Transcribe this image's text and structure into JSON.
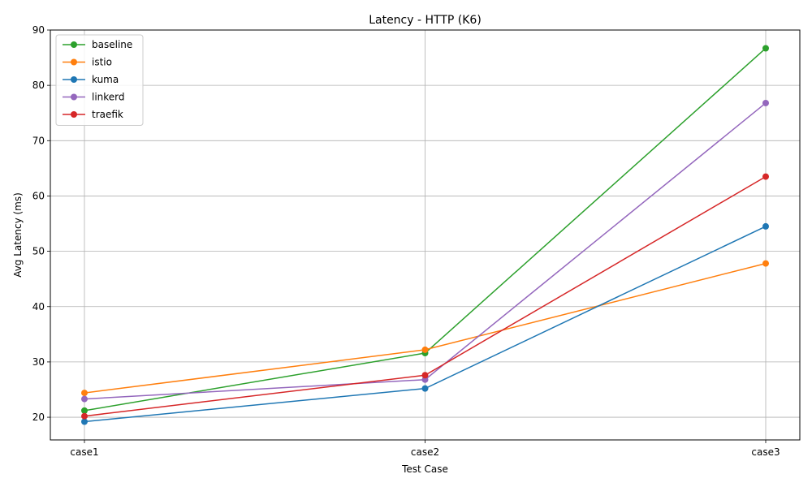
{
  "chart_data": {
    "type": "line",
    "title": "Latency - HTTP (K6)",
    "xlabel": "Test Case",
    "ylabel": "Avg Latency (ms)",
    "categories": [
      "case1",
      "case2",
      "case3"
    ],
    "ylim": [
      15.9,
      90
    ],
    "yticks": [
      20,
      30,
      40,
      50,
      60,
      70,
      80,
      90
    ],
    "grid": true,
    "legend_position": "upper-left",
    "series": [
      {
        "name": "baseline",
        "color": "#2ca02c",
        "values": [
          21.2,
          31.6,
          86.7
        ]
      },
      {
        "name": "istio",
        "color": "#ff7f0e",
        "values": [
          24.4,
          32.2,
          47.8
        ]
      },
      {
        "name": "kuma",
        "color": "#1f77b4",
        "values": [
          19.2,
          25.2,
          54.5
        ]
      },
      {
        "name": "linkerd",
        "color": "#9467bd",
        "values": [
          23.3,
          26.8,
          76.8
        ]
      },
      {
        "name": "traefik",
        "color": "#d62728",
        "values": [
          20.2,
          27.6,
          63.5
        ]
      }
    ]
  }
}
